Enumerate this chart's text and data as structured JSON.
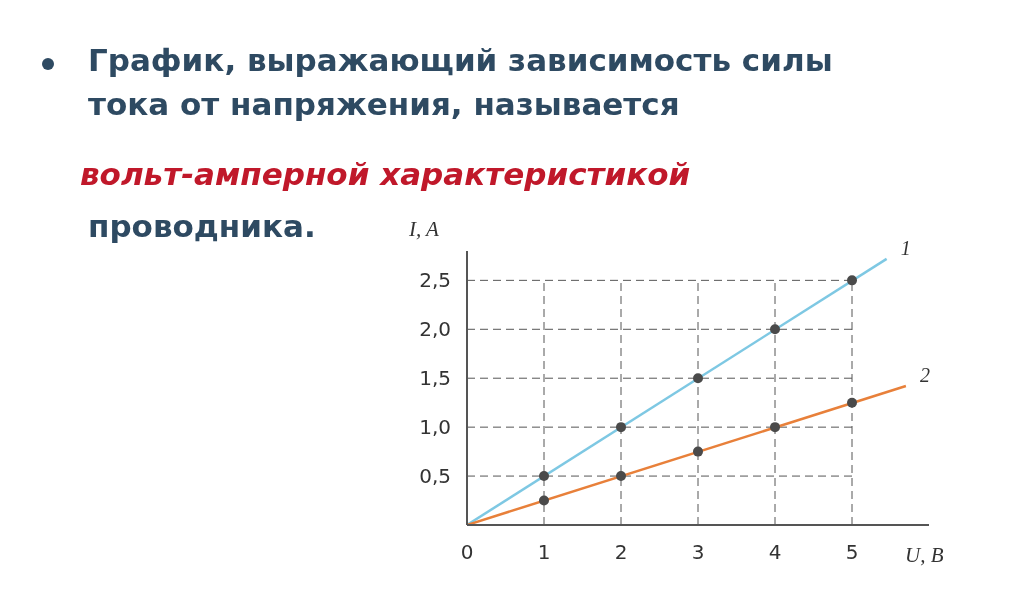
{
  "chart_data": {
    "type": "line",
    "title": "График, выражающий  зависимость силы тока от напряжения, называется",
    "subtitle": "вольт-амперной характеристикой",
    "annotations": [
      "проводника."
    ],
    "xlabel": "U, B",
    "ylabel": "I, A",
    "xlim": [
      0,
      6
    ],
    "ylim": [
      0,
      2.8
    ],
    "xticks": [
      0,
      1,
      2,
      3,
      4,
      5
    ],
    "yticks": [
      {
        "value": 0.5,
        "label": "0,5"
      },
      {
        "value": 1,
        "label": "1,0"
      },
      {
        "value": 1.5,
        "label": "1,5"
      },
      {
        "value": 2,
        "label": "2,0"
      },
      {
        "value": 2.5,
        "label": "2,5"
      }
    ],
    "grid": true,
    "series": [
      {
        "name": "1",
        "color": "#7ec8e3",
        "marker": "none",
        "x": [
          0,
          5.45
        ],
        "values": [
          0,
          2.72
        ]
      },
      {
        "name": "2",
        "color": "#e8803a",
        "marker": "none",
        "x": [
          0,
          5.7
        ],
        "values": [
          0,
          1.42
        ]
      },
      {
        "type": "scatter",
        "color": "#4a4a4a",
        "marker": "circle",
        "x": [
          1,
          2,
          3,
          4,
          5
        ],
        "values": [
          0.5,
          1,
          1.5,
          2,
          2.5
        ]
      },
      {
        "type": "scatter",
        "color": "#4a4a4a",
        "marker": "circle",
        "x": [
          1,
          2,
          3,
          4,
          5
        ],
        "values": [
          0.25,
          0.5,
          0.75,
          1,
          1.25
        ]
      }
    ]
  }
}
